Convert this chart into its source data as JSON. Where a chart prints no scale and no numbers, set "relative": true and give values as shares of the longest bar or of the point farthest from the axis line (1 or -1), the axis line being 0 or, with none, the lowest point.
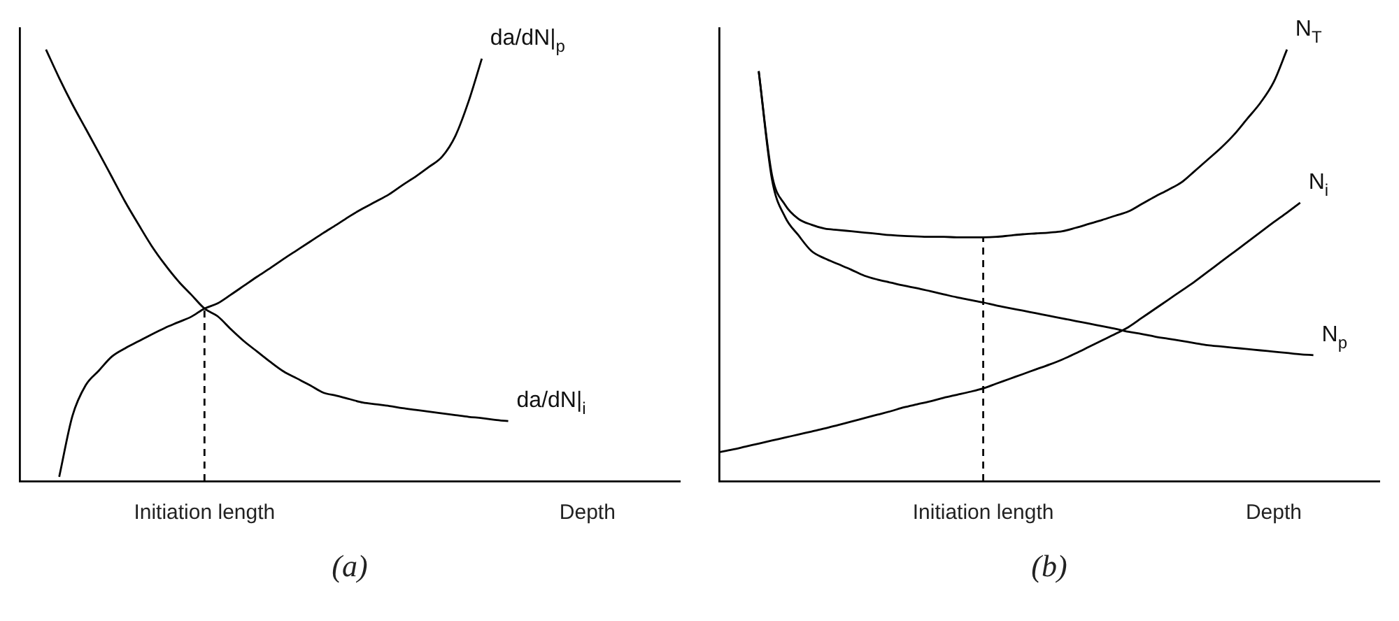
{
  "chart_data": [
    {
      "type": "line",
      "relative": true,
      "marker": "none",
      "grid": false,
      "legend": false,
      "annotations": [
        "(a)"
      ],
      "categories": [
        null,
        null,
        null,
        null,
        null,
        null,
        null,
        null,
        null,
        null,
        null,
        null,
        null,
        null,
        "Initiation length",
        null,
        null,
        null,
        null,
        null,
        null,
        null,
        null,
        null,
        null,
        null,
        null,
        null,
        null,
        null,
        null,
        null,
        null,
        null,
        null,
        null,
        null,
        null,
        null,
        null,
        null,
        null,
        null,
        "Depth",
        null,
        null,
        null,
        null,
        null,
        null,
        null
      ],
      "ref_lines": [
        {
          "axis": "x",
          "value": "Initiation length",
          "color": "#000000",
          "line_style": "dashed"
        }
      ],
      "series": [
        {
          "name": "da/dN|$_{i}$",
          "color": "#000000",
          "values": [
            null,
            null,
            1.0,
            0.934,
            0.873,
            0.817,
            0.761,
            0.704,
            0.647,
            0.595,
            0.545,
            0.502,
            0.464,
            0.432,
            0.4,
            0.382,
            0.352,
            0.324,
            0.3,
            0.276,
            0.254,
            0.238,
            0.222,
            0.205,
            0.198,
            0.19,
            0.182,
            0.178,
            0.174,
            0.169,
            0.165,
            0.161,
            0.157,
            0.153,
            0.149,
            0.146,
            0.142,
            0.139,
            null,
            null,
            null,
            null,
            null,
            null,
            null,
            null,
            null,
            null,
            null,
            null,
            null
          ]
        },
        {
          "name": "da/dN|$_{p}$",
          "color": "#000000",
          "values": [
            null,
            null,
            null,
            0.01,
            0.151,
            0.222,
            0.256,
            0.289,
            0.308,
            0.324,
            0.34,
            0.355,
            0.368,
            0.381,
            0.4,
            0.412,
            0.432,
            0.453,
            0.474,
            0.494,
            0.515,
            0.535,
            0.555,
            0.575,
            0.594,
            0.614,
            0.632,
            0.648,
            0.665,
            0.686,
            0.706,
            0.728,
            0.752,
            0.8,
            0.88,
            0.979,
            null,
            null,
            null,
            null,
            null,
            null,
            null,
            null,
            null,
            null,
            null,
            null,
            null,
            null,
            null
          ]
        }
      ]
    },
    {
      "type": "line",
      "relative": true,
      "marker": "none",
      "grid": false,
      "legend": false,
      "annotations": [
        "(b)"
      ],
      "categories": [
        null,
        null,
        null,
        null,
        null,
        null,
        null,
        null,
        null,
        null,
        null,
        null,
        null,
        null,
        null,
        null,
        null,
        null,
        null,
        null,
        "Initiation length",
        null,
        null,
        null,
        null,
        null,
        null,
        null,
        null,
        null,
        null,
        null,
        null,
        null,
        null,
        null,
        null,
        null,
        null,
        null,
        null,
        null,
        "Depth",
        null,
        null,
        null,
        null,
        null,
        null,
        null,
        null
      ],
      "ref_lines": [
        {
          "axis": "x",
          "value": "Initiation length",
          "color": "#000000",
          "line_style": "dashed"
        }
      ],
      "series": [
        {
          "name": "N$_{T}$",
          "color": "#000000",
          "values": [
            null,
            null,
            null,
            0.95,
            0.71,
            0.64,
            0.608,
            0.594,
            0.585,
            0.582,
            0.579,
            0.576,
            0.573,
            0.57,
            0.568,
            0.567,
            0.566,
            0.566,
            0.565,
            0.565,
            0.565,
            0.566,
            0.569,
            0.572,
            0.574,
            0.576,
            0.579,
            0.587,
            0.596,
            0.605,
            0.615,
            0.625,
            0.642,
            0.659,
            0.675,
            0.692,
            0.718,
            0.745,
            0.772,
            0.803,
            0.84,
            0.877,
            0.925,
            1.0,
            null,
            null,
            null,
            null,
            null,
            null,
            null
          ]
        },
        {
          "name": "N$_{i}$",
          "color": "#000000",
          "values": [
            0.067,
            0.073,
            0.08,
            0.087,
            0.094,
            0.101,
            0.108,
            0.115,
            0.122,
            0.13,
            0.138,
            0.146,
            0.154,
            0.162,
            0.171,
            0.178,
            0.185,
            0.193,
            0.2,
            0.207,
            0.215,
            0.226,
            0.237,
            0.248,
            0.259,
            0.27,
            0.282,
            0.296,
            0.311,
            0.326,
            0.341,
            0.357,
            0.378,
            0.399,
            0.42,
            0.441,
            0.462,
            0.485,
            0.508,
            0.531,
            0.554,
            0.577,
            0.6,
            0.622,
            0.645,
            null,
            null,
            null,
            null,
            null,
            null
          ]
        },
        {
          "name": "N$_{p}$",
          "color": "#000000",
          "values": [
            null,
            null,
            null,
            0.95,
            0.7,
            0.612,
            0.57,
            0.533,
            0.516,
            0.503,
            0.49,
            0.476,
            0.467,
            0.46,
            0.453,
            0.447,
            0.44,
            0.433,
            0.426,
            0.42,
            0.414,
            0.407,
            0.401,
            0.395,
            0.389,
            0.383,
            0.377,
            0.371,
            0.365,
            0.359,
            0.353,
            0.346,
            0.341,
            0.335,
            0.33,
            0.325,
            0.32,
            0.315,
            0.312,
            0.309,
            0.306,
            0.303,
            0.3,
            0.297,
            0.294,
            0.292,
            null,
            null,
            null,
            null,
            null
          ]
        }
      ]
    }
  ]
}
